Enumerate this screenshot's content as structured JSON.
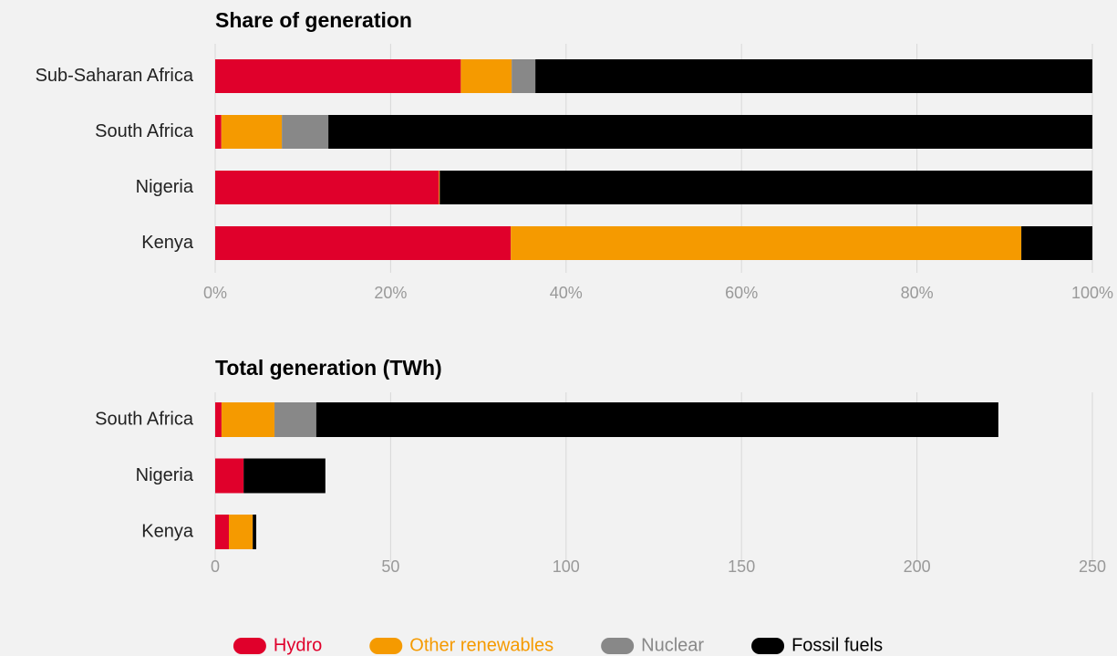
{
  "chart_data": [
    {
      "type": "bar",
      "orientation": "horizontal",
      "stacked": true,
      "title": "Share of generation",
      "categories": [
        "Sub-Saharan Africa",
        "South Africa",
        "Nigeria",
        "Kenya"
      ],
      "series": [
        {
          "name": "Hydro",
          "color": "#e0002b",
          "values": [
            28,
            0.7,
            25.5,
            33.7
          ]
        },
        {
          "name": "Other renewables",
          "color": "#f59a00",
          "values": [
            5.8,
            6.9,
            0.1,
            58.2
          ]
        },
        {
          "name": "Nuclear",
          "color": "#888888",
          "values": [
            2.7,
            5.3,
            0,
            0
          ]
        },
        {
          "name": "Fossil fuels",
          "color": "#000000",
          "values": [
            63.5,
            87.1,
            74.4,
            8.1
          ]
        }
      ],
      "xlim": [
        0,
        100
      ],
      "xticks": [
        {
          "value": 0,
          "label": "0%"
        },
        {
          "value": 20,
          "label": "20%"
        },
        {
          "value": 40,
          "label": "40%"
        },
        {
          "value": 60,
          "label": "60%"
        },
        {
          "value": 80,
          "label": "80%"
        },
        {
          "value": 100,
          "label": "100%"
        }
      ],
      "grid": true,
      "legend": "bottom"
    },
    {
      "type": "bar",
      "orientation": "horizontal",
      "stacked": true,
      "title": "Total generation (TWh)",
      "categories": [
        "South Africa",
        "Nigeria",
        "Kenya"
      ],
      "series": [
        {
          "color": "#e0002b",
          "values": [
            1.8,
            8.1,
            3.9
          ]
        },
        {
          "color": "#f59a00",
          "values": [
            15.1,
            0,
            6.8
          ]
        },
        {
          "color": "#888888",
          "values": [
            11.9,
            0,
            0
          ]
        },
        {
          "color": "#000000",
          "values": [
            194.4,
            23.3,
            1.0
          ]
        }
      ],
      "xlim": [
        0,
        250
      ],
      "xticks": [
        0,
        50,
        100,
        150,
        200,
        250
      ],
      "grid": true
    }
  ]
}
